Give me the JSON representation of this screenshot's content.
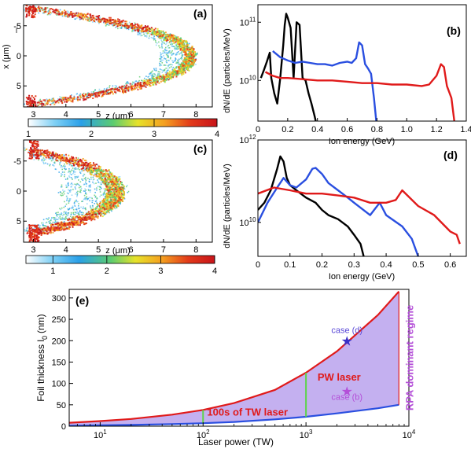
{
  "chart_data": [
    {
      "panel": "(a)",
      "type": "heatmap",
      "xlabel": "z (μm)",
      "ylabel": "x (μm)",
      "ylabel_extra": "l",
      "xlim": [
        2.7,
        8.5
      ],
      "ylim": [
        -8.5,
        8.5
      ],
      "xticks": [
        "3",
        "4",
        "5",
        "6",
        "7",
        "8"
      ],
      "yticks": [
        "-5",
        "0",
        "5"
      ],
      "colorbar": {
        "min": 1,
        "max": 4,
        "ticks": [
          "1",
          "2",
          "3",
          "4"
        ]
      },
      "shape": {
        "edge_z": 2.9,
        "apex_z": 7.8,
        "arm_x": 7
      }
    },
    {
      "panel": "(b)",
      "type": "line",
      "xlabel": "Ion energy (GeV)",
      "ylabel": "dN/dE (particles/MeV)",
      "xlim": [
        0,
        1.4
      ],
      "ylim": [
        2000000000.0,
        200000000000.0
      ],
      "log_y": true,
      "xticks": [
        "0",
        "0.2",
        "0.4",
        "0.6",
        "0.8",
        "1.0",
        "1.2",
        "1.4"
      ],
      "yticks": [
        "10^10",
        "10^11"
      ],
      "series": [
        {
          "color": "#000000",
          "x": [
            0.02,
            0.04,
            0.06,
            0.08,
            0.09,
            0.11,
            0.13,
            0.15,
            0.17,
            0.18,
            0.19,
            0.2,
            0.22,
            0.24,
            0.26,
            0.28,
            0.3,
            0.32,
            0.34,
            0.36,
            0.38,
            0.4
          ],
          "y": [
            11000000000.0,
            15000000000.0,
            21000000000.0,
            30000000000.0,
            11000000000.0,
            6000000000.0,
            4000000000.0,
            11000000000.0,
            40000000000.0,
            90000000000.0,
            140000000000.0,
            120000000000.0,
            80000000000.0,
            11000000000.0,
            100000000000.0,
            90000000000.0,
            11000000000.0,
            10000000000.0,
            6000000000.0,
            4000000000.0,
            2500000000.0,
            1500000000.0
          ]
        },
        {
          "color": "#2a4fe0",
          "x": [
            0.1,
            0.15,
            0.2,
            0.25,
            0.3,
            0.35,
            0.4,
            0.45,
            0.5,
            0.55,
            0.6,
            0.63,
            0.66,
            0.68,
            0.7,
            0.72,
            0.74,
            0.76,
            0.78,
            0.8
          ],
          "y": [
            32000000000.0,
            25000000000.0,
            22000000000.0,
            20000000000.0,
            21000000000.0,
            20000000000.0,
            19000000000.0,
            19000000000.0,
            18000000000.0,
            20000000000.0,
            21000000000.0,
            20000000000.0,
            24000000000.0,
            45000000000.0,
            40000000000.0,
            19000000000.0,
            16000000000.0,
            13000000000.0,
            5000000000.0,
            1500000000.0
          ]
        },
        {
          "color": "#e01a1a",
          "x": [
            0.05,
            0.1,
            0.15,
            0.2,
            0.3,
            0.4,
            0.5,
            0.6,
            0.7,
            0.8,
            0.9,
            1.0,
            1.1,
            1.15,
            1.2,
            1.23,
            1.25,
            1.27,
            1.3,
            1.33
          ],
          "y": [
            14000000000.0,
            12000000000.0,
            11000000000.0,
            11000000000.0,
            10500000000.0,
            10000000000.0,
            10000000000.0,
            9500000000.0,
            9000000000.0,
            9000000000.0,
            8500000000.0,
            8500000000.0,
            8000000000.0,
            8500000000.0,
            12000000000.0,
            19000000000.0,
            17000000000.0,
            8000000000.0,
            5000000000.0,
            1200000000.0
          ]
        }
      ]
    },
    {
      "panel": "(c)",
      "type": "heatmap",
      "xlabel": "z (μm)",
      "ylabel": "x (μm)",
      "xlim": [
        2.7,
        8.5
      ],
      "ylim": [
        -8.5,
        8.5
      ],
      "xticks": [
        "3",
        "4",
        "5",
        "6",
        "7",
        "8"
      ],
      "yticks": [
        "-5",
        "0",
        "5"
      ],
      "colorbar": {
        "min": 0.5,
        "max": 4,
        "ticks": [
          "1",
          "2",
          "3",
          "4"
        ]
      },
      "shape": {
        "edge_z": 3.0,
        "apex_z": 5.5,
        "arm_x": 6
      }
    },
    {
      "panel": "(d)",
      "type": "line",
      "xlabel": "Ion energy (GeV)",
      "ylabel": "dN/dE (particles/MeV)",
      "xlim": [
        0,
        0.65
      ],
      "ylim": [
        1500000000.0,
        1000000000000.0
      ],
      "log_y": true,
      "xticks": [
        "0",
        "0.1",
        "0.2",
        "0.3",
        "0.4",
        "0.5",
        "0.6"
      ],
      "yticks": [
        "10^10",
        "10^12"
      ],
      "series": [
        {
          "color": "#000000",
          "x": [
            0.0,
            0.02,
            0.04,
            0.06,
            0.07,
            0.08,
            0.09,
            0.1,
            0.12,
            0.15,
            0.18,
            0.2,
            0.22,
            0.25,
            0.28,
            0.3,
            0.32,
            0.33
          ],
          "y": [
            20000000000.0,
            30000000000.0,
            60000000000.0,
            200000000000.0,
            400000000000.0,
            300000000000.0,
            120000000000.0,
            80000000000.0,
            60000000000.0,
            40000000000.0,
            30000000000.0,
            20000000000.0,
            15000000000.0,
            12000000000.0,
            8000000000.0,
            5000000000.0,
            3000000000.0,
            1500000000.0
          ]
        },
        {
          "color": "#2a4fe0",
          "x": [
            0.0,
            0.03,
            0.06,
            0.08,
            0.1,
            0.12,
            0.15,
            0.17,
            0.18,
            0.2,
            0.22,
            0.25,
            0.28,
            0.3,
            0.35,
            0.38,
            0.4,
            0.45,
            0.48,
            0.5
          ],
          "y": [
            10000000000.0,
            30000000000.0,
            70000000000.0,
            120000000000.0,
            80000000000.0,
            70000000000.0,
            110000000000.0,
            200000000000.0,
            210000000000.0,
            150000000000.0,
            90000000000.0,
            60000000000.0,
            40000000000.0,
            30000000000.0,
            15000000000.0,
            30000000000.0,
            15000000000.0,
            8000000000.0,
            4000000000.0,
            1500000000.0
          ]
        },
        {
          "color": "#e01a1a",
          "x": [
            0.0,
            0.05,
            0.1,
            0.15,
            0.2,
            0.25,
            0.3,
            0.35,
            0.4,
            0.43,
            0.45,
            0.5,
            0.55,
            0.6,
            0.62,
            0.63
          ],
          "y": [
            50000000000.0,
            70000000000.0,
            60000000000.0,
            50000000000.0,
            50000000000.0,
            45000000000.0,
            40000000000.0,
            30000000000.0,
            30000000000.0,
            35000000000.0,
            60000000000.0,
            25000000000.0,
            15000000000.0,
            6000000000.0,
            5000000000.0,
            3000000000.0
          ]
        }
      ]
    },
    {
      "panel": "(e)",
      "type": "area",
      "xlabel": "Laser power (TW)",
      "ylabel": "Foil thickness l",
      "ylabel_sub": "0",
      "ylabel_unit": "(nm)",
      "xlim": [
        5,
        10000
      ],
      "ylim": [
        0,
        320
      ],
      "log_x": true,
      "xticks": [
        {
          "v": 10,
          "t": "10"
        },
        {
          "v": 100,
          "t": "10"
        },
        {
          "v": 1000,
          "t": "10"
        },
        {
          "v": 10000,
          "t": "10"
        }
      ],
      "xtick_exps": [
        "1",
        "2",
        "3",
        "4"
      ],
      "yticks": [
        "0",
        "50",
        "100",
        "150",
        "200",
        "250",
        "300"
      ],
      "upper_curve": {
        "color": "#e01a1a",
        "x": [
          5,
          10,
          20,
          50,
          100,
          200,
          500,
          1000,
          2000,
          5000,
          8000
        ],
        "y": [
          8,
          12,
          17,
          27,
          38,
          54,
          85,
          125,
          175,
          260,
          315
        ]
      },
      "lower_curve": {
        "color": "#2a4fe0",
        "x": [
          5,
          10,
          20,
          50,
          100,
          200,
          500,
          1000,
          2000,
          5000,
          8000
        ],
        "y": [
          1,
          2,
          3,
          5,
          7,
          10,
          16,
          22,
          30,
          42,
          50
        ]
      },
      "fill_color": "#c4b0f0",
      "boundaries": [
        {
          "x": 100,
          "y0": 7,
          "y1": 38,
          "color": "#5dd44a"
        },
        {
          "x": 1000,
          "y0": 22,
          "y1": 125,
          "color": "#5dd44a"
        }
      ],
      "annotations": [
        {
          "text": "100s of TW laser",
          "color": "#e01a1a",
          "x": 270,
          "y": 25
        },
        {
          "text": "PW laser",
          "color": "#e01a1a",
          "x": 2100,
          "y": 107
        },
        {
          "text": "case (d)",
          "color": "#5a49d8",
          "x": 2500,
          "y": 218
        },
        {
          "text": "case (b)",
          "color": "#b44fd8",
          "x": 2500,
          "y": 62
        },
        {
          "text": "RPA dominant regime",
          "color": "#b44fd8",
          "x": 8000,
          "y": 160
        }
      ],
      "markers": [
        {
          "label": "case (d)",
          "x": 2500,
          "y": 200,
          "color": "#3a30c8"
        },
        {
          "label": "case (b)",
          "x": 2500,
          "y": 82,
          "color": "#b44fd8"
        }
      ]
    }
  ],
  "colorbar_palette": [
    "#ffffff",
    "#7fd0f5",
    "#2aa0e8",
    "#5ccc70",
    "#e6e22a",
    "#f5a020",
    "#e23a1a",
    "#c8141a"
  ],
  "panel_labels": [
    "(a)",
    "(b)",
    "(c)",
    "(d)",
    "(e)"
  ]
}
